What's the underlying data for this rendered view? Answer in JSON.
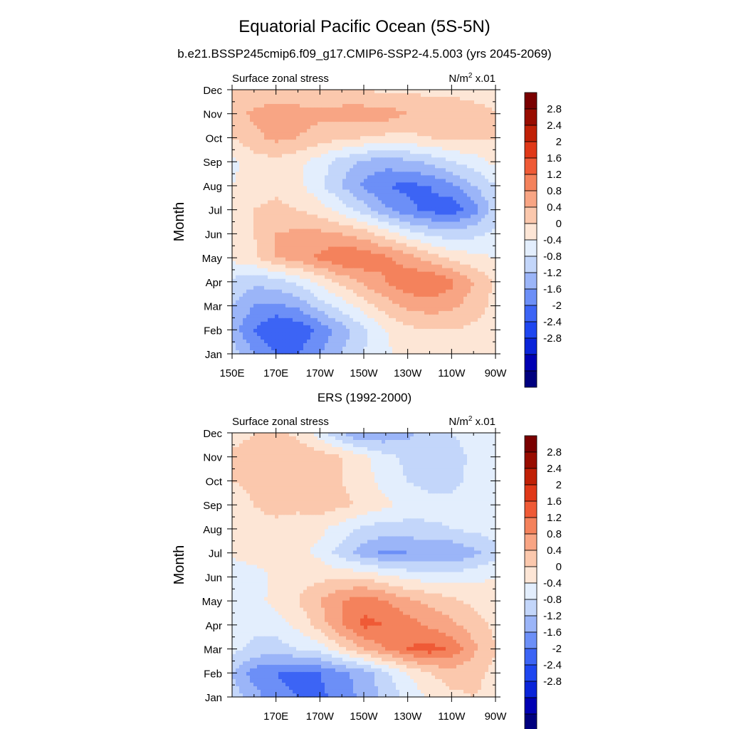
{
  "figure": {
    "title": "Equatorial Pacific Ocean (5S-5N)",
    "subtitle": "b.e21.BSSP245cmip6.f09_g17.CMIP6-SSP2-4.5.003 (yrs 2045-2069)",
    "panel2_title": "ERS (1992-2000)"
  },
  "colors": {
    "levels": [
      "#00007f",
      "#0000b3",
      "#0a24d9",
      "#1e46f0",
      "#3c64f5",
      "#6c8ff7",
      "#9bb5f8",
      "#c3d6fa",
      "#e3eefd",
      "#fde6d6",
      "#fbc8ad",
      "#f8a584",
      "#f4825c",
      "#ef5a36",
      "#e03818",
      "#c02006",
      "#980c00",
      "#7a0000"
    ]
  },
  "chart_data": [
    {
      "type": "heatmap",
      "name": "model",
      "left_label": "Surface zonal stress",
      "right_label": "N/m",
      "units_sup": "2",
      "units_suffix": " x.01",
      "ylabel": "Month",
      "yticks": [
        "Jan",
        "Feb",
        "Mar",
        "Apr",
        "May",
        "Jun",
        "Jul",
        "Aug",
        "Sep",
        "Oct",
        "Nov",
        "Dec"
      ],
      "xticks": [
        "150E",
        "170E",
        "170W",
        "150W",
        "130W",
        "110W",
        "90W"
      ],
      "xlim": [
        150,
        270
      ],
      "ylim": [
        0,
        11
      ],
      "colorbar_ticks": [
        "2.8",
        "2.4",
        "2",
        "1.6",
        "1.2",
        "0.8",
        "0.4",
        "0",
        "-0.4",
        "-0.8",
        "-1.2",
        "-1.6",
        "-2",
        "-2.4",
        "-2.8"
      ],
      "x": [
        150,
        160,
        170,
        180,
        190,
        200,
        210,
        220,
        230,
        240,
        250,
        260,
        270
      ],
      "z": [
        [
          -0.6,
          -1.2,
          -1.6,
          -1.6,
          -1.2,
          -0.8,
          -0.4,
          -0.1,
          0.2,
          0.3,
          0.4,
          0.3,
          0.2
        ],
        [
          -1.0,
          -1.6,
          -2.0,
          -1.9,
          -1.5,
          -1.0,
          -0.5,
          0.0,
          0.3,
          0.4,
          0.4,
          0.3,
          0.2
        ],
        [
          -0.8,
          -1.2,
          -1.3,
          -1.1,
          -0.6,
          -0.2,
          0.2,
          0.6,
          0.9,
          1.0,
          0.9,
          0.6,
          0.3
        ],
        [
          -0.5,
          -0.7,
          -0.6,
          -0.3,
          0.1,
          0.5,
          0.9,
          1.2,
          1.5,
          1.6,
          1.3,
          0.8,
          0.3
        ],
        [
          0.1,
          0.3,
          0.8,
          1.0,
          1.3,
          1.6,
          1.5,
          1.3,
          1.0,
          0.6,
          0.3,
          0.1,
          0.0
        ],
        [
          0.2,
          0.4,
          0.8,
          0.9,
          0.9,
          0.8,
          0.6,
          0.2,
          -0.2,
          -0.5,
          -0.6,
          -0.5,
          -0.3
        ],
        [
          0.2,
          0.4,
          0.5,
          0.4,
          0.2,
          -0.2,
          -0.6,
          -1.1,
          -1.5,
          -1.7,
          -1.9,
          -1.4,
          -0.6
        ],
        [
          0.0,
          0.2,
          0.3,
          0.1,
          -0.3,
          -0.8,
          -1.3,
          -1.6,
          -1.7,
          -1.6,
          -1.3,
          -0.8,
          -0.4
        ],
        [
          -0.1,
          0.2,
          0.3,
          0.1,
          -0.2,
          -0.6,
          -0.9,
          -1.0,
          -0.9,
          -0.7,
          -0.4,
          -0.2,
          0.1
        ],
        [
          0.4,
          0.7,
          0.9,
          0.8,
          0.6,
          0.5,
          0.4,
          0.3,
          0.3,
          0.4,
          0.5,
          0.5,
          0.4
        ],
        [
          0.6,
          0.9,
          1.0,
          1.0,
          0.9,
          1.0,
          1.0,
          1.0,
          0.8,
          0.7,
          0.6,
          0.5,
          0.4
        ],
        [
          0.4,
          0.5,
          0.5,
          0.4,
          0.4,
          0.4,
          0.4,
          0.3,
          0.3,
          0.3,
          0.3,
          0.3,
          0.3
        ]
      ]
    },
    {
      "type": "heatmap",
      "name": "observations",
      "left_label": "Surface zonal stress",
      "right_label": "N/m",
      "units_sup": "2",
      "units_suffix": " x.01",
      "ylabel": "Month",
      "yticks": [
        "Jan",
        "Feb",
        "Mar",
        "Apr",
        "May",
        "Jun",
        "Jul",
        "Aug",
        "Sep",
        "Oct",
        "Nov",
        "Dec"
      ],
      "xticks": [
        "170E",
        "170W",
        "150W",
        "130W",
        "110W",
        "90W"
      ],
      "xlim": [
        150,
        270
      ],
      "ylim": [
        0,
        11
      ],
      "colorbar_ticks": [
        "2.8",
        "2.4",
        "2",
        "1.6",
        "1.2",
        "0.8",
        "0.4",
        "0",
        "-0.4",
        "-0.8",
        "-1.2",
        "-1.6",
        "-2",
        "-2.4",
        "-2.8"
      ],
      "x": [
        150,
        160,
        170,
        180,
        190,
        200,
        210,
        220,
        230,
        240,
        250,
        260,
        270
      ],
      "z": [
        [
          -0.6,
          -1.0,
          -1.5,
          -1.6,
          -1.7,
          -1.4,
          -1.1,
          -0.7,
          -0.3,
          0.1,
          0.3,
          0.4,
          0.3
        ],
        [
          -0.8,
          -1.4,
          -1.6,
          -1.7,
          -1.6,
          -1.3,
          -1.0,
          -0.5,
          0.0,
          0.4,
          0.6,
          0.5,
          0.3
        ],
        [
          -0.3,
          -0.5,
          -0.6,
          -0.4,
          -0.2,
          0.3,
          0.8,
          1.2,
          1.6,
          1.8,
          1.5,
          0.9,
          0.4
        ],
        [
          -0.2,
          -0.3,
          -0.2,
          0.1,
          0.6,
          1.2,
          1.7,
          1.6,
          1.4,
          1.1,
          0.9,
          0.6,
          0.3
        ],
        [
          -0.2,
          -0.1,
          0.1,
          0.4,
          0.8,
          1.2,
          1.5,
          1.2,
          0.9,
          0.7,
          0.5,
          0.3,
          0.2
        ],
        [
          -0.3,
          -0.2,
          0.1,
          0.2,
          0.3,
          0.3,
          0.3,
          0.1,
          -0.1,
          -0.2,
          -0.2,
          -0.1,
          0.0
        ],
        [
          0.1,
          0.2,
          0.2,
          0.1,
          -0.1,
          -0.6,
          -1.0,
          -1.3,
          -1.2,
          -1.1,
          -1.2,
          -0.9,
          -0.6
        ],
        [
          0.2,
          0.3,
          0.3,
          0.2,
          0.1,
          -0.2,
          -0.5,
          -0.6,
          -0.6,
          -0.5,
          -0.4,
          -0.3,
          -0.2
        ],
        [
          0.2,
          0.4,
          0.5,
          0.5,
          0.6,
          0.5,
          0.3,
          0.1,
          -0.1,
          -0.2,
          -0.3,
          -0.3,
          -0.2
        ],
        [
          0.4,
          0.5,
          0.5,
          0.5,
          0.6,
          0.4,
          0.2,
          -0.2,
          -0.4,
          -0.6,
          -0.5,
          -0.3,
          -0.1
        ],
        [
          0.5,
          0.6,
          0.8,
          0.7,
          0.6,
          0.4,
          0.1,
          -0.3,
          -0.5,
          -0.6,
          -0.6,
          -0.3,
          0.0
        ],
        [
          0.2,
          0.4,
          0.5,
          0.3,
          -0.2,
          -0.8,
          -1.3,
          -1.1,
          -0.9,
          -0.6,
          -0.4,
          -0.2,
          0.0
        ]
      ]
    }
  ]
}
